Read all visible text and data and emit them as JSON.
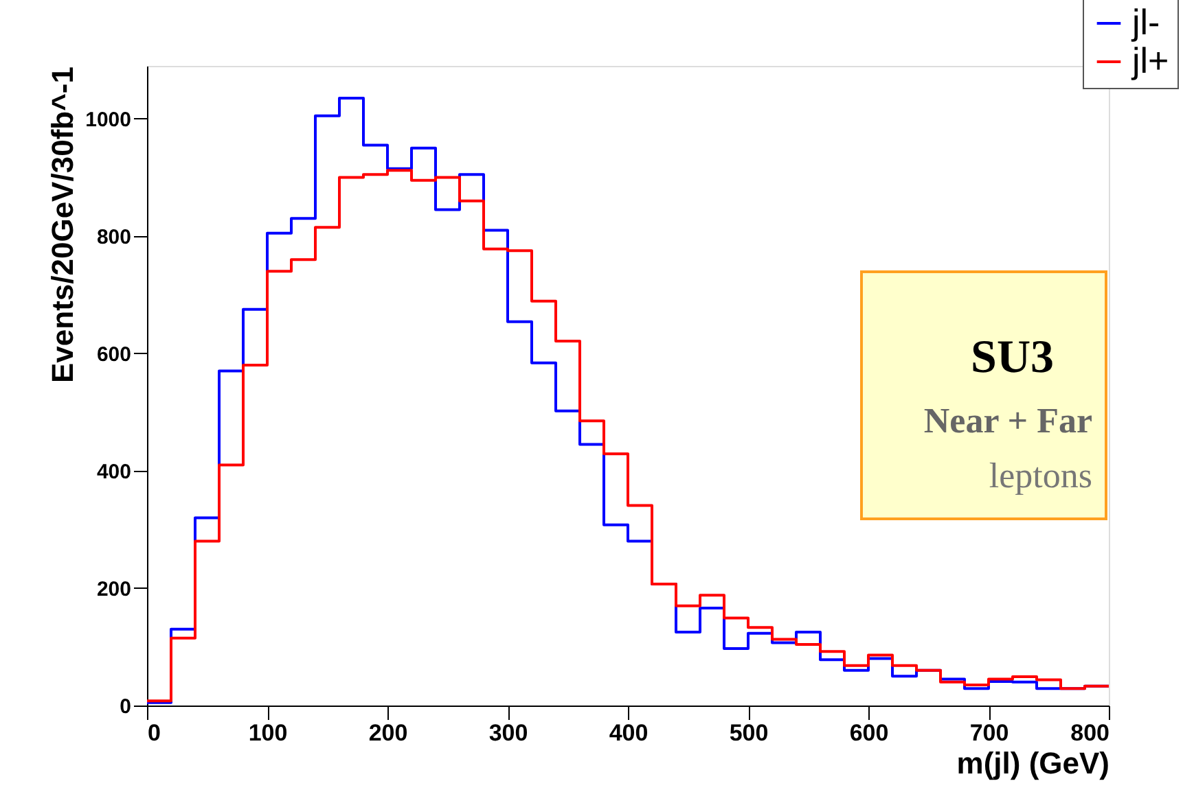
{
  "chart_data": {
    "type": "histogram",
    "xlabel": "m(jl)  (GeV)",
    "ylabel": "Events/20GeV/30fb^-1",
    "bins": [
      0,
      20,
      40,
      60,
      80,
      100,
      120,
      140,
      160,
      180,
      200,
      220,
      240,
      260,
      280,
      300,
      320,
      340,
      360,
      380,
      400,
      420,
      440,
      460,
      480,
      500,
      520,
      540,
      560,
      580,
      600,
      620,
      640,
      660,
      680,
      700,
      720,
      740,
      760,
      780,
      800
    ],
    "series": [
      {
        "name": "jl-",
        "color": "#0000ff",
        "values": [
          5,
          130,
          320,
          570,
          675,
          805,
          830,
          1005,
          1035,
          955,
          915,
          950,
          845,
          905,
          810,
          654,
          584,
          502,
          445,
          308,
          280,
          207,
          125,
          166,
          97,
          123,
          107,
          125,
          78,
          60,
          80,
          50,
          60,
          45,
          29,
          41,
          40,
          29,
          29,
          33
        ]
      },
      {
        "name": "jl+",
        "color": "#ff0000",
        "values": [
          8,
          115,
          280,
          410,
          580,
          740,
          760,
          815,
          900,
          905,
          912,
          895,
          900,
          860,
          778,
          775,
          689,
          621,
          485,
          429,
          341,
          207,
          170,
          188,
          149,
          133,
          113,
          104,
          92,
          68,
          86,
          68,
          60,
          40,
          35,
          45,
          49,
          44,
          29,
          33
        ]
      }
    ],
    "xlim": [
      0,
      800
    ],
    "xticks": [
      0,
      100,
      200,
      300,
      400,
      500,
      600,
      700,
      800
    ],
    "ylim": [
      0,
      1090
    ],
    "yticks": [
      0,
      200,
      400,
      600,
      800,
      1000
    ],
    "grid": false,
    "legend": "top right",
    "annotations": [
      "SU3",
      "Near + Far",
      "leptons"
    ]
  }
}
